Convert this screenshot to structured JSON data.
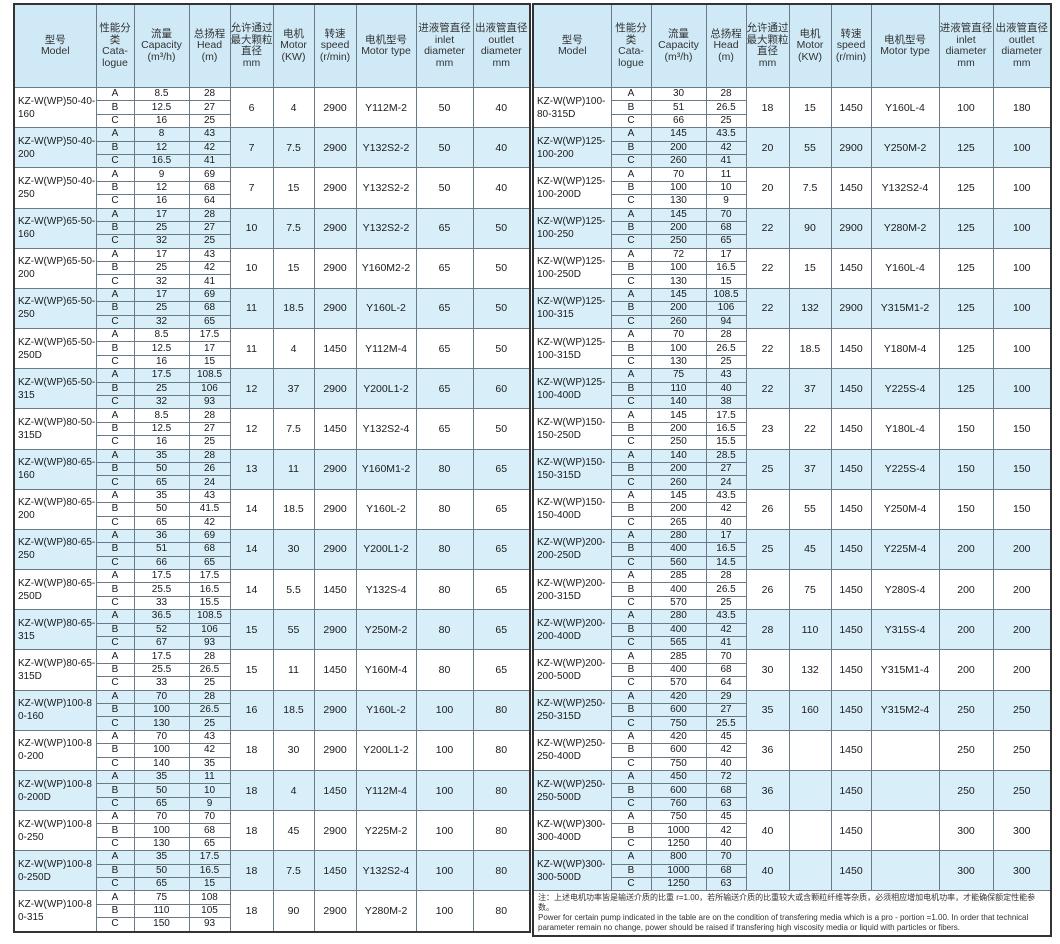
{
  "headers": [
    {
      "cn": "型号",
      "en": "Model"
    },
    {
      "cn": "性能分类",
      "en": "Cata-logue"
    },
    {
      "cn": "流量",
      "en": "Capacity (m³/h)"
    },
    {
      "cn": "总扬程",
      "en": "Head (m)"
    },
    {
      "cn": "允许通过最大颗粒直径",
      "en": "mm"
    },
    {
      "cn": "电机",
      "en": "Motor (KW)"
    },
    {
      "cn": "转速",
      "en": "speed (r/min)"
    },
    {
      "cn": "电机型号",
      "en": "Motor type"
    },
    {
      "cn": "进液管直径",
      "en": "inlet diameter mm"
    },
    {
      "cn": "出液管直径",
      "en": "outlet diameter mm"
    }
  ],
  "left_rows": [
    {
      "model": "KZ-W(WP)50-40-160",
      "sub": [
        [
          "A",
          "8.5",
          "28"
        ],
        [
          "B",
          "12.5",
          "27"
        ],
        [
          "C",
          "16",
          "25"
        ]
      ],
      "particle": "6",
      "motor": "4",
      "speed": "2900",
      "motor_type": "Y112M-2",
      "inlet": "50",
      "outlet": "40"
    },
    {
      "model": "KZ-W(WP)50-40-200",
      "sub": [
        [
          "A",
          "8",
          "43"
        ],
        [
          "B",
          "12",
          "42"
        ],
        [
          "C",
          "16.5",
          "41"
        ]
      ],
      "particle": "7",
      "motor": "7.5",
      "speed": "2900",
      "motor_type": "Y132S2-2",
      "inlet": "50",
      "outlet": "40"
    },
    {
      "model": "KZ-W(WP)50-40-250",
      "sub": [
        [
          "A",
          "9",
          "69"
        ],
        [
          "B",
          "12",
          "68"
        ],
        [
          "C",
          "16",
          "64"
        ]
      ],
      "particle": "7",
      "motor": "15",
      "speed": "2900",
      "motor_type": "Y132S2-2",
      "inlet": "50",
      "outlet": "40"
    },
    {
      "model": "KZ-W(WP)65-50-160",
      "sub": [
        [
          "A",
          "17",
          "28"
        ],
        [
          "B",
          "25",
          "27"
        ],
        [
          "C",
          "32",
          "25"
        ]
      ],
      "particle": "10",
      "motor": "7.5",
      "speed": "2900",
      "motor_type": "Y132S2-2",
      "inlet": "65",
      "outlet": "50"
    },
    {
      "model": "KZ-W(WP)65-50-200",
      "sub": [
        [
          "A",
          "17",
          "43"
        ],
        [
          "B",
          "25",
          "42"
        ],
        [
          "C",
          "32",
          "41"
        ]
      ],
      "particle": "10",
      "motor": "15",
      "speed": "2900",
      "motor_type": "Y160M2-2",
      "inlet": "65",
      "outlet": "50"
    },
    {
      "model": "KZ-W(WP)65-50-250",
      "sub": [
        [
          "A",
          "17",
          "69"
        ],
        [
          "B",
          "25",
          "68"
        ],
        [
          "C",
          "32",
          "65"
        ]
      ],
      "particle": "11",
      "motor": "18.5",
      "speed": "2900",
      "motor_type": "Y160L-2",
      "inlet": "65",
      "outlet": "50"
    },
    {
      "model": "KZ-W(WP)65-50-250D",
      "sub": [
        [
          "A",
          "8.5",
          "17.5"
        ],
        [
          "B",
          "12.5",
          "17"
        ],
        [
          "C",
          "16",
          "15"
        ]
      ],
      "particle": "11",
      "motor": "4",
      "speed": "1450",
      "motor_type": "Y112M-4",
      "inlet": "65",
      "outlet": "50"
    },
    {
      "model": "KZ-W(WP)65-50-315",
      "sub": [
        [
          "A",
          "17.5",
          "108.5"
        ],
        [
          "B",
          "25",
          "106"
        ],
        [
          "C",
          "32",
          "93"
        ]
      ],
      "particle": "12",
      "motor": "37",
      "speed": "2900",
      "motor_type": "Y200L1-2",
      "inlet": "65",
      "outlet": "60"
    },
    {
      "model": "KZ-W(WP)80-50-315D",
      "sub": [
        [
          "A",
          "8.5",
          "28"
        ],
        [
          "B",
          "12.5",
          "27"
        ],
        [
          "C",
          "16",
          "25"
        ]
      ],
      "particle": "12",
      "motor": "7.5",
      "speed": "1450",
      "motor_type": "Y132S2-4",
      "inlet": "65",
      "outlet": "50"
    },
    {
      "model": "KZ-W(WP)80-65-160",
      "sub": [
        [
          "A",
          "35",
          "28"
        ],
        [
          "B",
          "50",
          "26"
        ],
        [
          "C",
          "65",
          "24"
        ]
      ],
      "particle": "13",
      "motor": "11",
      "speed": "2900",
      "motor_type": "Y160M1-2",
      "inlet": "80",
      "outlet": "65"
    },
    {
      "model": "KZ-W(WP)80-65-200",
      "sub": [
        [
          "A",
          "35",
          "43"
        ],
        [
          "B",
          "50",
          "41.5"
        ],
        [
          "C",
          "65",
          "42"
        ]
      ],
      "particle": "14",
      "motor": "18.5",
      "speed": "2900",
      "motor_type": "Y160L-2",
      "inlet": "80",
      "outlet": "65"
    },
    {
      "model": "KZ-W(WP)80-65-250",
      "sub": [
        [
          "A",
          "36",
          "69"
        ],
        [
          "B",
          "51",
          "68"
        ],
        [
          "C",
          "66",
          "65"
        ]
      ],
      "particle": "14",
      "motor": "30",
      "speed": "2900",
      "motor_type": "Y200L1-2",
      "inlet": "80",
      "outlet": "65"
    },
    {
      "model": "KZ-W(WP)80-65-250D",
      "sub": [
        [
          "A",
          "17.5",
          "17.5"
        ],
        [
          "B",
          "25.5",
          "16.5"
        ],
        [
          "C",
          "33",
          "15.5"
        ]
      ],
      "particle": "14",
      "motor": "5.5",
      "speed": "1450",
      "motor_type": "Y132S-4",
      "inlet": "80",
      "outlet": "65"
    },
    {
      "model": "KZ-W(WP)80-65-315",
      "sub": [
        [
          "A",
          "36.5",
          "108.5"
        ],
        [
          "B",
          "52",
          "106"
        ],
        [
          "C",
          "67",
          "93"
        ]
      ],
      "particle": "15",
      "motor": "55",
      "speed": "2900",
      "motor_type": "Y250M-2",
      "inlet": "80",
      "outlet": "65"
    },
    {
      "model": "KZ-W(WP)80-65-315D",
      "sub": [
        [
          "A",
          "17.5",
          "28"
        ],
        [
          "B",
          "25.5",
          "26.5"
        ],
        [
          "C",
          "33",
          "25"
        ]
      ],
      "particle": "15",
      "motor": "11",
      "speed": "1450",
      "motor_type": "Y160M-4",
      "inlet": "80",
      "outlet": "65"
    },
    {
      "model": "KZ-W(WP)100-80-160",
      "sub": [
        [
          "A",
          "70",
          "28"
        ],
        [
          "B",
          "100",
          "26.5"
        ],
        [
          "C",
          "130",
          "25"
        ]
      ],
      "particle": "16",
      "motor": "18.5",
      "speed": "2900",
      "motor_type": "Y160L-2",
      "inlet": "100",
      "outlet": "80"
    },
    {
      "model": "KZ-W(WP)100-80-200",
      "sub": [
        [
          "A",
          "70",
          "43"
        ],
        [
          "B",
          "100",
          "42"
        ],
        [
          "C",
          "140",
          "35"
        ]
      ],
      "particle": "18",
      "motor": "30",
      "speed": "2900",
      "motor_type": "Y200L1-2",
      "inlet": "100",
      "outlet": "80"
    },
    {
      "model": "KZ-W(WP)100-80-200D",
      "sub": [
        [
          "A",
          "35",
          "11"
        ],
        [
          "B",
          "50",
          "10"
        ],
        [
          "C",
          "65",
          "9"
        ]
      ],
      "particle": "18",
      "motor": "4",
      "speed": "1450",
      "motor_type": "Y112M-4",
      "inlet": "100",
      "outlet": "80"
    },
    {
      "model": "KZ-W(WP)100-80-250",
      "sub": [
        [
          "A",
          "70",
          "70"
        ],
        [
          "B",
          "100",
          "68"
        ],
        [
          "C",
          "130",
          "65"
        ]
      ],
      "particle": "18",
      "motor": "45",
      "speed": "2900",
      "motor_type": "Y225M-2",
      "inlet": "100",
      "outlet": "80"
    },
    {
      "model": "KZ-W(WP)100-80-250D",
      "sub": [
        [
          "A",
          "35",
          "17.5"
        ],
        [
          "B",
          "50",
          "16.5"
        ],
        [
          "C",
          "65",
          "15"
        ]
      ],
      "particle": "18",
      "motor": "7.5",
      "speed": "1450",
      "motor_type": "Y132S2-4",
      "inlet": "100",
      "outlet": "80"
    },
    {
      "model": "KZ-W(WP)100-80-315",
      "sub": [
        [
          "A",
          "75",
          "108"
        ],
        [
          "B",
          "110",
          "105"
        ],
        [
          "C",
          "150",
          "93"
        ]
      ],
      "particle": "18",
      "motor": "90",
      "speed": "2900",
      "motor_type": "Y280M-2",
      "inlet": "100",
      "outlet": "80"
    }
  ],
  "right_rows": [
    {
      "model": "KZ-W(WP)100-80-315D",
      "sub": [
        [
          "A",
          "30",
          "28"
        ],
        [
          "B",
          "51",
          "26.5"
        ],
        [
          "C",
          "66",
          "25"
        ]
      ],
      "particle": "18",
      "motor": "15",
      "speed": "1450",
      "motor_type": "Y160L-4",
      "inlet": "100",
      "outlet": "180"
    },
    {
      "model": "KZ-W(WP)125-100-200",
      "sub": [
        [
          "A",
          "145",
          "43.5"
        ],
        [
          "B",
          "200",
          "42"
        ],
        [
          "C",
          "260",
          "41"
        ]
      ],
      "particle": "20",
      "motor": "55",
      "speed": "2900",
      "motor_type": "Y250M-2",
      "inlet": "125",
      "outlet": "100"
    },
    {
      "model": "KZ-W(WP)125-100-200D",
      "sub": [
        [
          "A",
          "70",
          "11"
        ],
        [
          "B",
          "100",
          "10"
        ],
        [
          "C",
          "130",
          "9"
        ]
      ],
      "particle": "20",
      "motor": "7.5",
      "speed": "1450",
      "motor_type": "Y132S2-4",
      "inlet": "125",
      "outlet": "100"
    },
    {
      "model": "KZ-W(WP)125-100-250",
      "sub": [
        [
          "A",
          "145",
          "70"
        ],
        [
          "B",
          "200",
          "68"
        ],
        [
          "C",
          "250",
          "65"
        ]
      ],
      "particle": "22",
      "motor": "90",
      "speed": "2900",
      "motor_type": "Y280M-2",
      "inlet": "125",
      "outlet": "100"
    },
    {
      "model": "KZ-W(WP)125-100-250D",
      "sub": [
        [
          "A",
          "72",
          "17"
        ],
        [
          "B",
          "100",
          "16.5"
        ],
        [
          "C",
          "130",
          "15"
        ]
      ],
      "particle": "22",
      "motor": "15",
      "speed": "1450",
      "motor_type": "Y160L-4",
      "inlet": "125",
      "outlet": "100"
    },
    {
      "model": "KZ-W(WP)125-100-315",
      "sub": [
        [
          "A",
          "145",
          "108.5"
        ],
        [
          "B",
          "200",
          "106"
        ],
        [
          "C",
          "260",
          "94"
        ]
      ],
      "particle": "22",
      "motor": "132",
      "speed": "2900",
      "motor_type": "Y315M1-2",
      "inlet": "125",
      "outlet": "100"
    },
    {
      "model": "KZ-W(WP)125-100-315D",
      "sub": [
        [
          "A",
          "70",
          "28"
        ],
        [
          "B",
          "100",
          "26.5"
        ],
        [
          "C",
          "130",
          "25"
        ]
      ],
      "particle": "22",
      "motor": "18.5",
      "speed": "1450",
      "motor_type": "Y180M-4",
      "inlet": "125",
      "outlet": "100"
    },
    {
      "model": "KZ-W(WP)125-100-400D",
      "sub": [
        [
          "A",
          "75",
          "43"
        ],
        [
          "B",
          "110",
          "40"
        ],
        [
          "C",
          "140",
          "38"
        ]
      ],
      "particle": "22",
      "motor": "37",
      "speed": "1450",
      "motor_type": "Y225S-4",
      "inlet": "125",
      "outlet": "100"
    },
    {
      "model": "KZ-W(WP)150-150-250D",
      "sub": [
        [
          "A",
          "145",
          "17.5"
        ],
        [
          "B",
          "200",
          "16.5"
        ],
        [
          "C",
          "250",
          "15.5"
        ]
      ],
      "particle": "23",
      "motor": "22",
      "speed": "1450",
      "motor_type": "Y180L-4",
      "inlet": "150",
      "outlet": "150"
    },
    {
      "model": "KZ-W(WP)150-150-315D",
      "sub": [
        [
          "A",
          "140",
          "28.5"
        ],
        [
          "B",
          "200",
          "27"
        ],
        [
          "C",
          "260",
          "24"
        ]
      ],
      "particle": "25",
      "motor": "37",
      "speed": "1450",
      "motor_type": "Y225S-4",
      "inlet": "150",
      "outlet": "150"
    },
    {
      "model": "KZ-W(WP)150-150-400D",
      "sub": [
        [
          "A",
          "145",
          "43.5"
        ],
        [
          "B",
          "200",
          "42"
        ],
        [
          "C",
          "265",
          "40"
        ]
      ],
      "particle": "26",
      "motor": "55",
      "speed": "1450",
      "motor_type": "Y250M-4",
      "inlet": "150",
      "outlet": "150"
    },
    {
      "model": "KZ-W(WP)200-200-250D",
      "sub": [
        [
          "A",
          "280",
          "17"
        ],
        [
          "B",
          "400",
          "16.5"
        ],
        [
          "C",
          "560",
          "14.5"
        ]
      ],
      "particle": "25",
      "motor": "45",
      "speed": "1450",
      "motor_type": "Y225M-4",
      "inlet": "200",
      "outlet": "200"
    },
    {
      "model": "KZ-W(WP)200-200-315D",
      "sub": [
        [
          "A",
          "285",
          "28"
        ],
        [
          "B",
          "400",
          "26.5"
        ],
        [
          "C",
          "570",
          "25"
        ]
      ],
      "particle": "26",
      "motor": "75",
      "speed": "1450",
      "motor_type": "Y280S-4",
      "inlet": "200",
      "outlet": "200"
    },
    {
      "model": "KZ-W(WP)200-200-400D",
      "sub": [
        [
          "A",
          "280",
          "43.5"
        ],
        [
          "B",
          "400",
          "42"
        ],
        [
          "C",
          "565",
          "41"
        ]
      ],
      "particle": "28",
      "motor": "110",
      "speed": "1450",
      "motor_type": "Y315S-4",
      "inlet": "200",
      "outlet": "200"
    },
    {
      "model": "KZ-W(WP)200-200-500D",
      "sub": [
        [
          "A",
          "285",
          "70"
        ],
        [
          "B",
          "400",
          "68"
        ],
        [
          "C",
          "570",
          "64"
        ]
      ],
      "particle": "30",
      "motor": "132",
      "speed": "1450",
      "motor_type": "Y315M1-4",
      "inlet": "200",
      "outlet": "200"
    },
    {
      "model": "KZ-W(WP)250-250-315D",
      "sub": [
        [
          "A",
          "420",
          "29"
        ],
        [
          "B",
          "600",
          "27"
        ],
        [
          "C",
          "750",
          "25.5"
        ]
      ],
      "particle": "35",
      "motor": "160",
      "speed": "1450",
      "motor_type": "Y315M2-4",
      "inlet": "250",
      "outlet": "250"
    },
    {
      "model": "KZ-W(WP)250-250-400D",
      "sub": [
        [
          "A",
          "420",
          "45"
        ],
        [
          "B",
          "600",
          "42"
        ],
        [
          "C",
          "750",
          "40"
        ]
      ],
      "particle": "36",
      "motor": "",
      "speed": "1450",
      "motor_type": "",
      "inlet": "250",
      "outlet": "250"
    },
    {
      "model": "KZ-W(WP)250-250-500D",
      "sub": [
        [
          "A",
          "450",
          "72"
        ],
        [
          "B",
          "600",
          "68"
        ],
        [
          "C",
          "760",
          "63"
        ]
      ],
      "particle": "36",
      "motor": "",
      "speed": "1450",
      "motor_type": "",
      "inlet": "250",
      "outlet": "250"
    },
    {
      "model": "KZ-W(WP)300-300-400D",
      "sub": [
        [
          "A",
          "750",
          "45"
        ],
        [
          "B",
          "1000",
          "42"
        ],
        [
          "C",
          "1250",
          "40"
        ]
      ],
      "particle": "40",
      "motor": "",
      "speed": "1450",
      "motor_type": "",
      "inlet": "300",
      "outlet": "300"
    },
    {
      "model": "KZ-W(WP)300-300-500D",
      "sub": [
        [
          "A",
          "800",
          "70"
        ],
        [
          "B",
          "1000",
          "68"
        ],
        [
          "C",
          "1250",
          "63"
        ]
      ],
      "particle": "40",
      "motor": "",
      "speed": "1450",
      "motor_type": "",
      "inlet": "300",
      "outlet": "300"
    }
  ],
  "footnote": {
    "cn": "注：上述电机功率皆是输送介质的比重 r=1.00，若所输送介质的比重较大或含颗粒纤维等杂质，必须相应增加电机功率，才能确保额定性能参数。",
    "en": "Power for certain pump indicated in the table are on the condition of transfering media which is a pro - portion =1.00. In order that technical parameter remain no change, power should be raised if transfering high viscosity media or liquid with particles or fibers."
  },
  "colors": {
    "header_bg": "#cfe9f6",
    "alt_row_bg": "#d8eff9",
    "border": "#333333"
  }
}
